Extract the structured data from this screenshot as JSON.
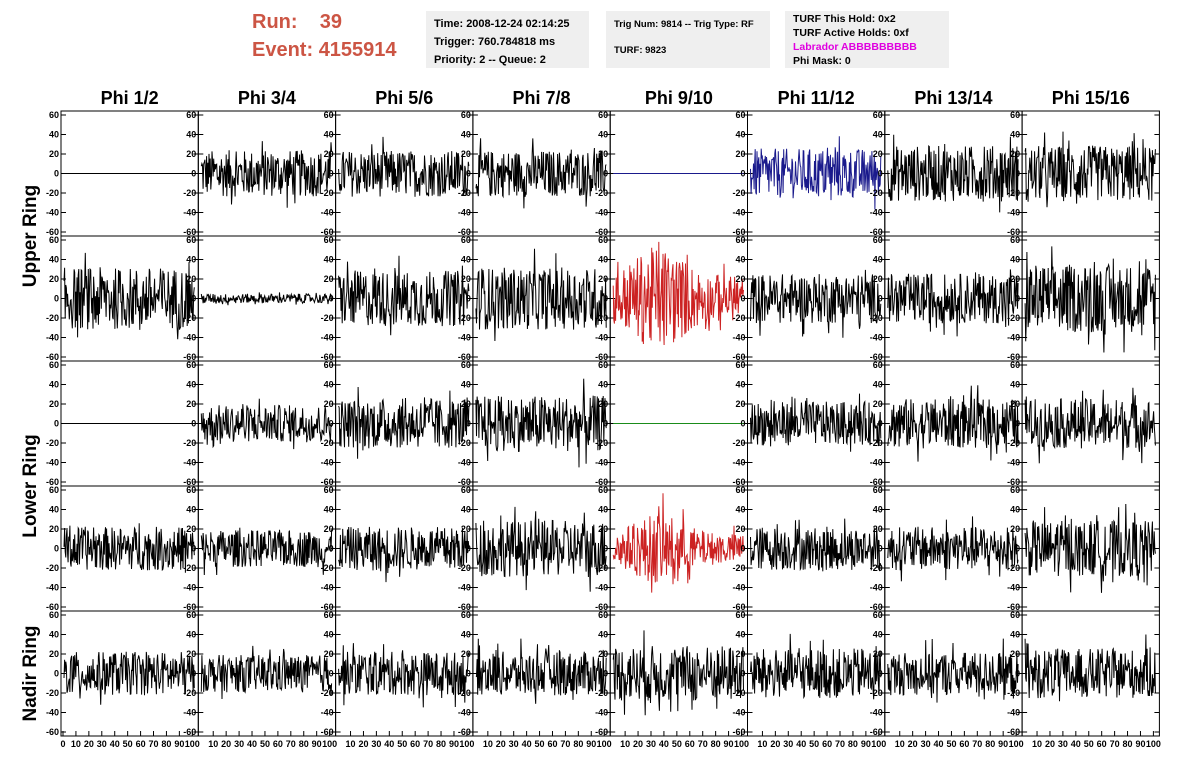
{
  "header": {
    "run_label": "Run:",
    "run_value": "39",
    "event_label": "Event:",
    "event_value": "4155914",
    "time": "Time: 2008-12-24 02:14:25",
    "trigger": "Trigger: 760.784818 ms",
    "priority": "Priority: 2 -- Queue: 2",
    "trig_num": "Trig Num: 9814 -- Trig Type: RF",
    "turf": "TURF: 9823",
    "turf_this_hold": "TURF This Hold: 0x2",
    "turf_active_holds": "TURF Active Holds: 0xf",
    "labrador": "Labrador ABBBBBBBBB",
    "phi_mask": "Phi Mask: 0"
  },
  "colors": {
    "header_red": "#cc5544",
    "magenta": "#e000e0",
    "trace_black": "#000000",
    "trace_blue": "#1a1a8c",
    "trace_red": "#cc2222",
    "trace_green": "#1a8c1a",
    "box_gray": "#efefef"
  },
  "chart_data": {
    "type": "line",
    "columns": [
      "Phi 1/2",
      "Phi 3/4",
      "Phi 5/6",
      "Phi 7/8",
      "Phi 9/10",
      "Phi 11/12",
      "Phi 13/14",
      "Phi 15/16"
    ],
    "ring_labels": [
      "Upper Ring",
      "Lower Ring",
      "Nadir Ring"
    ],
    "ylim": [
      -60,
      60
    ],
    "y_ticks": [
      -60,
      -40,
      -20,
      0,
      20,
      40,
      60
    ],
    "xlim": [
      0,
      100
    ],
    "x_tick_labels": [
      "0",
      "10",
      "20",
      "30",
      "40",
      "50",
      "60",
      "70",
      "80",
      "90",
      "100"
    ],
    "rows": [
      {
        "panels": [
          {
            "color": "black",
            "amplitude": 0
          },
          {
            "color": "black",
            "amplitude": 15
          },
          {
            "color": "black",
            "amplitude": 15
          },
          {
            "color": "black",
            "amplitude": 15
          },
          {
            "color": "blue",
            "amplitude": 0
          },
          {
            "color": "blue",
            "amplitude": 16
          },
          {
            "color": "black",
            "amplitude": 18
          },
          {
            "color": "black",
            "amplitude": 18
          }
        ]
      },
      {
        "panels": [
          {
            "color": "black",
            "amplitude": 20
          },
          {
            "color": "black",
            "amplitude": 3
          },
          {
            "color": "black",
            "amplitude": 18
          },
          {
            "color": "black",
            "amplitude": 20
          },
          {
            "color": "red",
            "amplitude": 24
          },
          {
            "color": "black",
            "amplitude": 16
          },
          {
            "color": "black",
            "amplitude": 16
          },
          {
            "color": "black",
            "amplitude": 22
          }
        ]
      },
      {
        "panels": [
          {
            "color": "black",
            "amplitude": 0
          },
          {
            "color": "black",
            "amplitude": 12
          },
          {
            "color": "black",
            "amplitude": 16
          },
          {
            "color": "black",
            "amplitude": 18
          },
          {
            "color": "green",
            "amplitude": 0
          },
          {
            "color": "black",
            "amplitude": 14
          },
          {
            "color": "black",
            "amplitude": 16
          },
          {
            "color": "black",
            "amplitude": 16
          }
        ]
      },
      {
        "panels": [
          {
            "color": "black",
            "amplitude": 14
          },
          {
            "color": "black",
            "amplitude": 12
          },
          {
            "color": "black",
            "amplitude": 14
          },
          {
            "color": "black",
            "amplitude": 18
          },
          {
            "color": "red",
            "amplitude": 16
          },
          {
            "color": "black",
            "amplitude": 14
          },
          {
            "color": "black",
            "amplitude": 14
          },
          {
            "color": "black",
            "amplitude": 18
          }
        ]
      },
      {
        "panels": [
          {
            "color": "black",
            "amplitude": 14
          },
          {
            "color": "black",
            "amplitude": 12
          },
          {
            "color": "black",
            "amplitude": 14
          },
          {
            "color": "black",
            "amplitude": 14
          },
          {
            "color": "black",
            "amplitude": 18
          },
          {
            "color": "black",
            "amplitude": 16
          },
          {
            "color": "black",
            "amplitude": 14
          },
          {
            "color": "black",
            "amplitude": 16
          }
        ]
      }
    ]
  }
}
